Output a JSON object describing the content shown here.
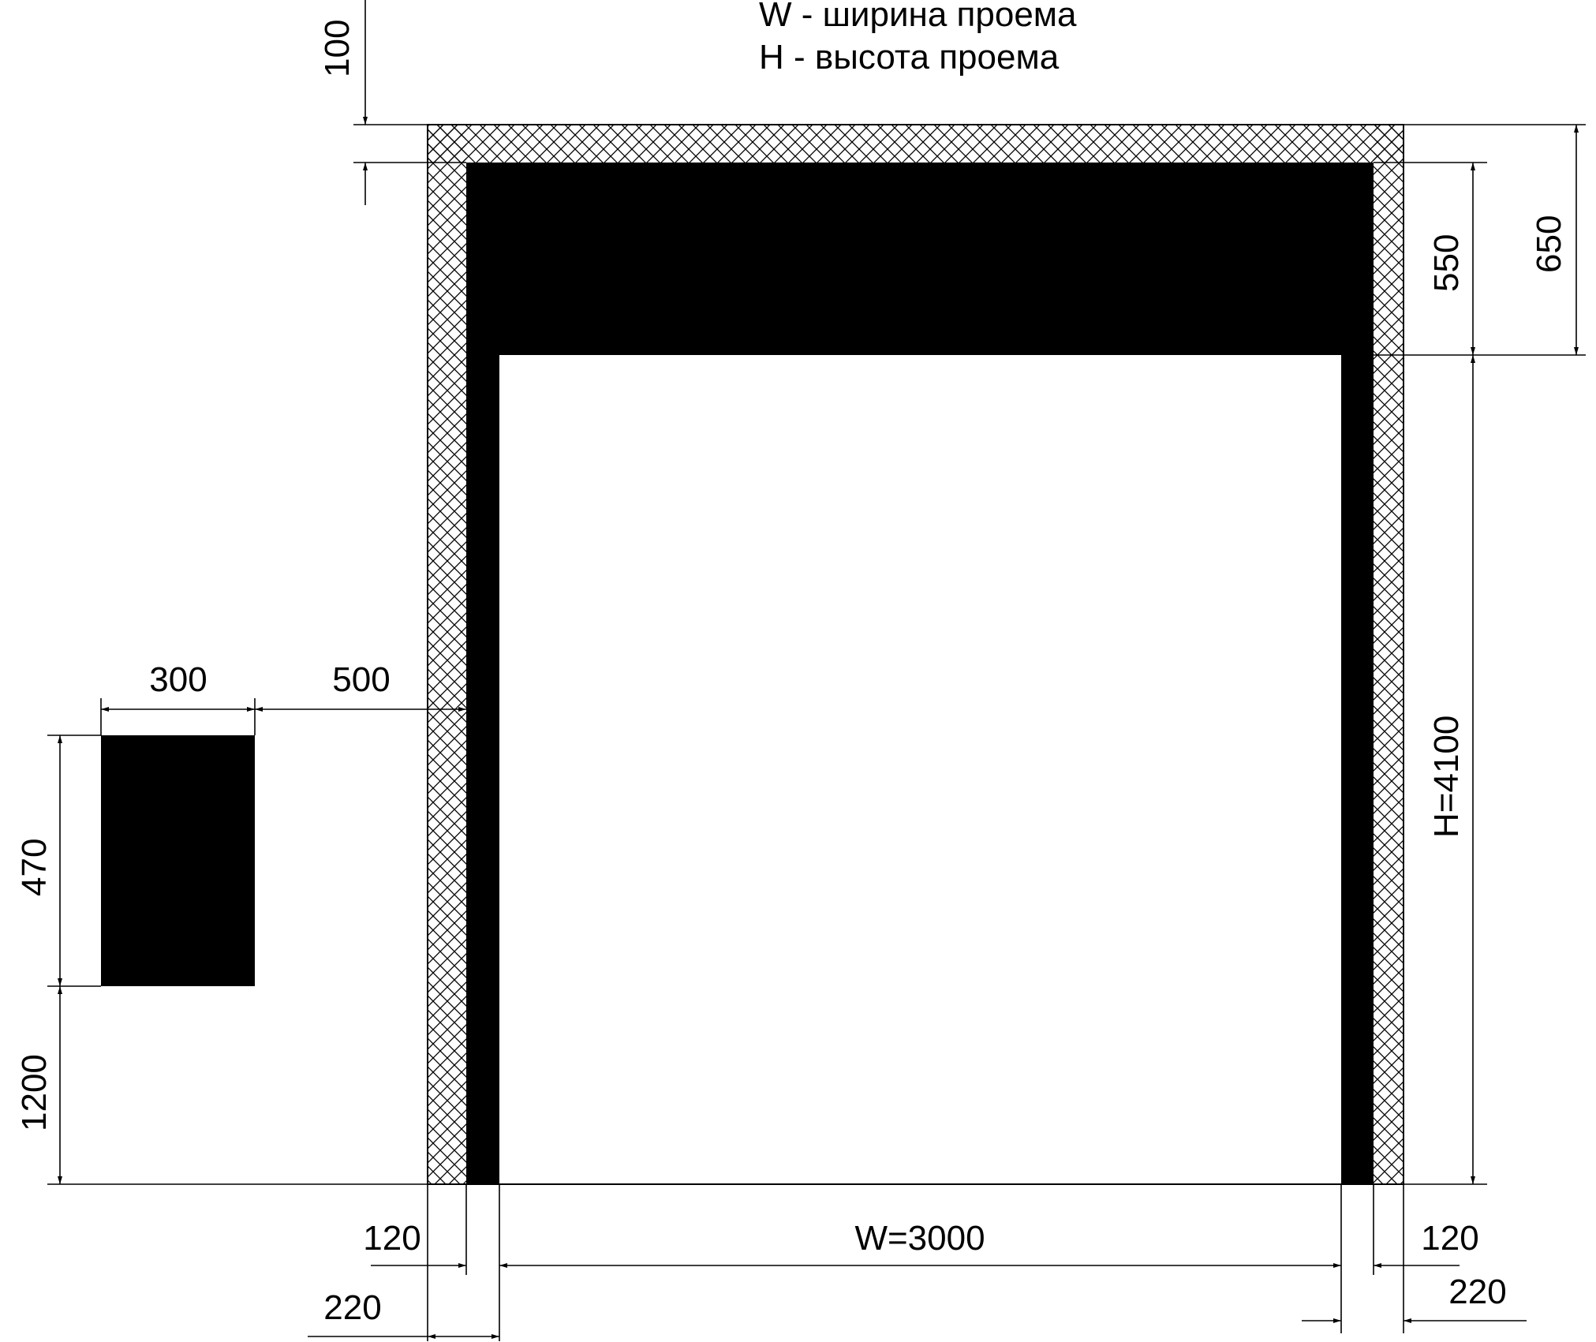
{
  "legend": {
    "line1": "W - ширина проема",
    "line2": "H - высота проема"
  },
  "dimensions": {
    "top_offset": "100",
    "header_height": "550",
    "total_header": "650",
    "opening_height": "H=4100",
    "opening_width": "W=3000",
    "left_frame_inner": "120",
    "left_frame_outer": "220",
    "right_frame_inner": "120",
    "right_frame_outer": "220",
    "panel_width": "300",
    "panel_gap": "500",
    "panel_height": "470",
    "panel_floor": "1200"
  },
  "colors": {
    "ink": "#000000",
    "paper": "#ffffff"
  }
}
